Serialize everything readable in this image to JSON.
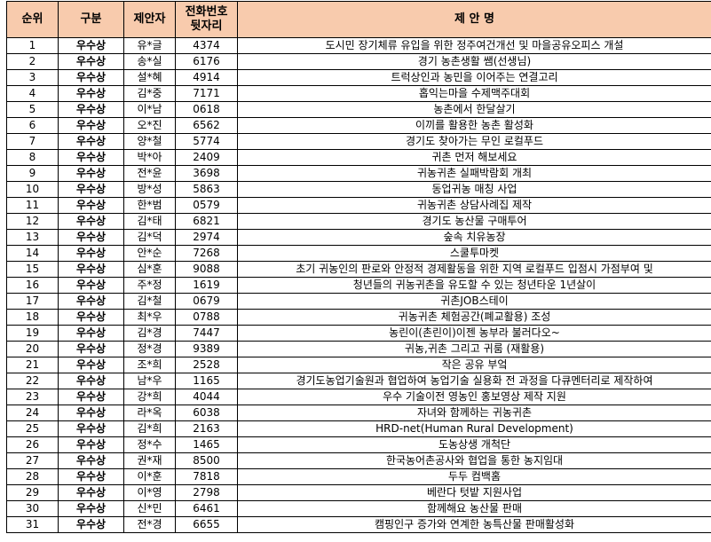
{
  "header": {
    "rank": "순위",
    "category": "구분",
    "proposer": "제안자",
    "phone_line1": "전화번호",
    "phone_line2": "뒷자리",
    "title": "제 안 명"
  },
  "rows": [
    {
      "rank": "1",
      "category": "우수상",
      "proposer": "유*글",
      "phone": "4374",
      "title": "도시민 장기체류 유입을 위한 정주여건개선 및 마을공유오피스 개설"
    },
    {
      "rank": "2",
      "category": "우수상",
      "proposer": "송*실",
      "phone": "6176",
      "title": "경기 농촌생활 쌤(선생님)"
    },
    {
      "rank": "3",
      "category": "우수상",
      "proposer": "설*혜",
      "phone": "4914",
      "title": "트럭상인과 농민을 이어주는 연결고리"
    },
    {
      "rank": "4",
      "category": "우수상",
      "proposer": "김*중",
      "phone": "7171",
      "title": "홉익는마을 수제맥주대회"
    },
    {
      "rank": "5",
      "category": "우수상",
      "proposer": "이*남",
      "phone": "0618",
      "title": "농촌에서 한달살기"
    },
    {
      "rank": "6",
      "category": "우수상",
      "proposer": "오*진",
      "phone": "6562",
      "title": "이끼를 활용한 농촌 활성화"
    },
    {
      "rank": "7",
      "category": "우수상",
      "proposer": "양*철",
      "phone": "5774",
      "title": "경기도 찾아가는 무인 로컬푸드"
    },
    {
      "rank": "8",
      "category": "우수상",
      "proposer": "박*아",
      "phone": "2409",
      "title": "귀촌 먼저 해보세요"
    },
    {
      "rank": "9",
      "category": "우수상",
      "proposer": "전*윤",
      "phone": "3698",
      "title": "귀농귀촌 실패박람회 개최"
    },
    {
      "rank": "10",
      "category": "우수상",
      "proposer": "방*성",
      "phone": "5863",
      "title": "동업귀농 매칭 사업"
    },
    {
      "rank": "11",
      "category": "우수상",
      "proposer": "한*범",
      "phone": "0579",
      "title": "귀농귀촌 상담사례집 제작"
    },
    {
      "rank": "12",
      "category": "우수상",
      "proposer": "김*태",
      "phone": "6821",
      "title": "경기도 농산물 구매투어"
    },
    {
      "rank": "13",
      "category": "우수상",
      "proposer": "김*덕",
      "phone": "2974",
      "title": "숲속 치유농장"
    },
    {
      "rank": "14",
      "category": "우수상",
      "proposer": "안*순",
      "phone": "7268",
      "title": "스쿨투마켓"
    },
    {
      "rank": "15",
      "category": "우수상",
      "proposer": "심*훈",
      "phone": "9088",
      "title": "초기 귀농인의 판로와 안정적 경제활동을 위한 지역 로컬푸드 입점시 가점부여 및"
    },
    {
      "rank": "16",
      "category": "우수상",
      "proposer": "주*정",
      "phone": "1619",
      "title": "청년들의 귀농귀촌을 유도할 수 있는 청년타운 1년살이"
    },
    {
      "rank": "17",
      "category": "우수상",
      "proposer": "김*철",
      "phone": "0679",
      "title": "귀촌JOB스테이"
    },
    {
      "rank": "18",
      "category": "우수상",
      "proposer": "최*우",
      "phone": "0788",
      "title": "귀농귀촌 체험공간(폐교활용) 조성"
    },
    {
      "rank": "19",
      "category": "우수상",
      "proposer": "김*경",
      "phone": "7447",
      "title": "농린이(촌린이)이젠 농부라 불러다오~"
    },
    {
      "rank": "20",
      "category": "우수상",
      "proposer": "정*경",
      "phone": "9389",
      "title": "귀농,귀촌 그리고 귀룸 (재활용)"
    },
    {
      "rank": "21",
      "category": "우수상",
      "proposer": "조*희",
      "phone": "2528",
      "title": "작은 공유 부엌"
    },
    {
      "rank": "22",
      "category": "우수상",
      "proposer": "남*우",
      "phone": "1165",
      "title": "경기도농업기술원과 협업하여 농업기술 실용화 전 과정을 다큐멘터리로 제작하여"
    },
    {
      "rank": "23",
      "category": "우수상",
      "proposer": "강*희",
      "phone": "4044",
      "title": "우수 기술이전 영농인 홍보영상 제작 지원"
    },
    {
      "rank": "24",
      "category": "우수상",
      "proposer": "라*옥",
      "phone": "6038",
      "title": "자녀와 함께하는 귀농귀촌"
    },
    {
      "rank": "25",
      "category": "우수상",
      "proposer": "김*희",
      "phone": "2163",
      "title": "HRD-net(Human Rural Development)"
    },
    {
      "rank": "26",
      "category": "우수상",
      "proposer": "정*수",
      "phone": "1465",
      "title": "도농상생 개척단"
    },
    {
      "rank": "27",
      "category": "우수상",
      "proposer": "권*재",
      "phone": "8500",
      "title": "한국농어촌공사와 협업을 통한 농지임대"
    },
    {
      "rank": "28",
      "category": "우수상",
      "proposer": "이*훈",
      "phone": "7818",
      "title": "두두 컴백홈"
    },
    {
      "rank": "29",
      "category": "우수상",
      "proposer": "이*영",
      "phone": "2798",
      "title": "베란다 텃밭 지원사업"
    },
    {
      "rank": "30",
      "category": "우수상",
      "proposer": "신*민",
      "phone": "6461",
      "title": "함께해요 농산물 판매"
    },
    {
      "rank": "31",
      "category": "우수상",
      "proposer": "전*경",
      "phone": "6655",
      "title": "캠핑인구 증가와 연계한 농특산물 판매활성화"
    }
  ]
}
